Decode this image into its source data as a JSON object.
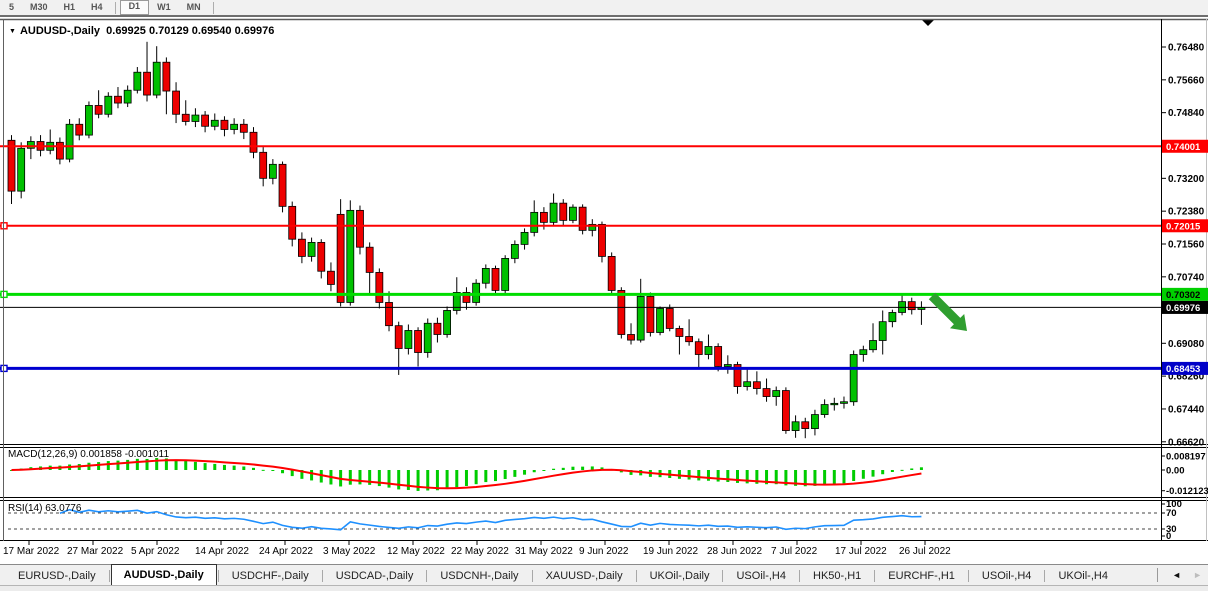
{
  "toolbar": {
    "buttons": [
      "5",
      "M30",
      "H1",
      "H4",
      "D1",
      "W1",
      "MN"
    ],
    "active": "D1",
    "separators_after": [
      "H4",
      "MN"
    ]
  },
  "window": {
    "symbol_label": "AUDUSD-,Daily",
    "ohlc_text": "0.69925 0.70129 0.69540 0.69976"
  },
  "chart_data": {
    "type": "candlestick",
    "symbol": "AUDUSD",
    "timeframe": "Daily",
    "current_bar": {
      "open": 0.69925,
      "high": 0.70129,
      "low": 0.6954,
      "close": 0.69976
    },
    "y_axis_ticks": [
      "0.76480",
      "0.75660",
      "0.74840",
      "0.73200",
      "0.72380",
      "0.71560",
      "0.70740",
      "0.69080",
      "0.68260",
      "0.67440",
      "0.66620"
    ],
    "y_range": {
      "max": 0.7648,
      "min": 0.6662
    },
    "x_labels": [
      "17 Mar 2022",
      "27 Mar 2022",
      "5 Apr 2022",
      "14 Apr 2022",
      "24 Apr 2022",
      "3 May 2022",
      "12 May 2022",
      "22 May 2022",
      "31 May 2022",
      "9 Jun 2022",
      "19 Jun 2022",
      "28 Jun 2022",
      "7 Jul 2022",
      "17 Jul 2022",
      "26 Jul 2022"
    ],
    "hlines": [
      {
        "price": 0.74001,
        "label": "0.74001",
        "color": "#ff0000",
        "width": 2,
        "badge_bg": "#ff0000",
        "badge_fg": "#ffffff",
        "handle": false
      },
      {
        "price": 0.72015,
        "label": "0.72015",
        "color": "#ff0000",
        "width": 2,
        "badge_bg": "#ff0000",
        "badge_fg": "#ffffff",
        "handle": true
      },
      {
        "price": 0.70302,
        "label": "0.70302",
        "color": "#00dd00",
        "width": 3,
        "badge_bg": "#00d000",
        "badge_fg": "#000000",
        "handle": true
      },
      {
        "price": 0.69976,
        "label": "0.69976",
        "color": "#000000",
        "width": 1,
        "badge_bg": "#000000",
        "badge_fg": "#ffffff",
        "handle": false
      },
      {
        "price": 0.68453,
        "label": "0.68453",
        "color": "#0000d0",
        "width": 3,
        "badge_bg": "#0000c8",
        "badge_fg": "#ffffff",
        "handle": true
      }
    ],
    "colors": {
      "bull": "#00c000",
      "bear": "#ee0000",
      "wick": "#000000",
      "arrow": "#2f9e2f"
    },
    "candles": [
      [
        0.7415,
        0.7428,
        0.7256,
        0.7288
      ],
      [
        0.7288,
        0.741,
        0.727,
        0.7395
      ],
      [
        0.7395,
        0.7425,
        0.7368,
        0.7412
      ],
      [
        0.7412,
        0.7428,
        0.7375,
        0.739
      ],
      [
        0.739,
        0.7442,
        0.738,
        0.741
      ],
      [
        0.741,
        0.7422,
        0.7355,
        0.7368
      ],
      [
        0.7368,
        0.7468,
        0.736,
        0.7455
      ],
      [
        0.7455,
        0.747,
        0.7415,
        0.7428
      ],
      [
        0.7428,
        0.7512,
        0.742,
        0.7502
      ],
      [
        0.7502,
        0.754,
        0.747,
        0.748
      ],
      [
        0.748,
        0.7535,
        0.7472,
        0.7525
      ],
      [
        0.7525,
        0.7548,
        0.7495,
        0.7508
      ],
      [
        0.7508,
        0.7552,
        0.7498,
        0.754
      ],
      [
        0.754,
        0.7598,
        0.7532,
        0.7585
      ],
      [
        0.7585,
        0.7661,
        0.7512,
        0.7528
      ],
      [
        0.7528,
        0.765,
        0.752,
        0.761
      ],
      [
        0.761,
        0.7622,
        0.748,
        0.7538
      ],
      [
        0.7538,
        0.756,
        0.7458,
        0.748
      ],
      [
        0.748,
        0.7515,
        0.7452,
        0.7462
      ],
      [
        0.7462,
        0.7495,
        0.7448,
        0.7478
      ],
      [
        0.7478,
        0.7488,
        0.7435,
        0.745
      ],
      [
        0.745,
        0.7482,
        0.744,
        0.7465
      ],
      [
        0.7465,
        0.7475,
        0.7425,
        0.7442
      ],
      [
        0.7442,
        0.747,
        0.743,
        0.7455
      ],
      [
        0.7455,
        0.7468,
        0.7418,
        0.7435
      ],
      [
        0.7435,
        0.7448,
        0.737,
        0.7385
      ],
      [
        0.7385,
        0.7398,
        0.73,
        0.732
      ],
      [
        0.732,
        0.7368,
        0.7305,
        0.7355
      ],
      [
        0.7355,
        0.7362,
        0.7235,
        0.725
      ],
      [
        0.725,
        0.7262,
        0.715,
        0.7168
      ],
      [
        0.7168,
        0.7185,
        0.7108,
        0.7125
      ],
      [
        0.7125,
        0.7172,
        0.7112,
        0.716
      ],
      [
        0.716,
        0.7168,
        0.707,
        0.7088
      ],
      [
        0.7088,
        0.711,
        0.7038,
        0.7055
      ],
      [
        0.723,
        0.7268,
        0.7,
        0.701
      ],
      [
        0.701,
        0.7265,
        0.7002,
        0.724
      ],
      [
        0.724,
        0.7252,
        0.713,
        0.7148
      ],
      [
        0.7148,
        0.716,
        0.703,
        0.7085
      ],
      [
        0.7085,
        0.7095,
        0.6995,
        0.701
      ],
      [
        0.701,
        0.7038,
        0.6938,
        0.6952
      ],
      [
        0.6952,
        0.6962,
        0.6829,
        0.6895
      ],
      [
        0.6895,
        0.6955,
        0.688,
        0.694
      ],
      [
        0.694,
        0.6948,
        0.685,
        0.6885
      ],
      [
        0.6885,
        0.697,
        0.6872,
        0.6958
      ],
      [
        0.6958,
        0.6972,
        0.691,
        0.693
      ],
      [
        0.693,
        0.7,
        0.6922,
        0.699
      ],
      [
        0.699,
        0.7073,
        0.698,
        0.7035
      ],
      [
        0.7035,
        0.7048,
        0.6992,
        0.701
      ],
      [
        0.701,
        0.7068,
        0.7002,
        0.7058
      ],
      [
        0.7058,
        0.7105,
        0.7045,
        0.7095
      ],
      [
        0.7095,
        0.7102,
        0.7028,
        0.704
      ],
      [
        0.704,
        0.7128,
        0.7032,
        0.712
      ],
      [
        0.712,
        0.7165,
        0.7108,
        0.7155
      ],
      [
        0.7155,
        0.7195,
        0.7142,
        0.7185
      ],
      [
        0.7185,
        0.7265,
        0.7175,
        0.7235
      ],
      [
        0.7235,
        0.7248,
        0.7192,
        0.721
      ],
      [
        0.721,
        0.7282,
        0.7202,
        0.7258
      ],
      [
        0.7258,
        0.7268,
        0.72,
        0.7215
      ],
      [
        0.7215,
        0.7255,
        0.7208,
        0.7248
      ],
      [
        0.7248,
        0.7255,
        0.718,
        0.719
      ],
      [
        0.719,
        0.7218,
        0.7175,
        0.7205
      ],
      [
        0.7205,
        0.7212,
        0.711,
        0.7125
      ],
      [
        0.7125,
        0.7135,
        0.7028,
        0.704
      ],
      [
        0.704,
        0.7048,
        0.692,
        0.693
      ],
      [
        0.693,
        0.6958,
        0.6905,
        0.6916
      ],
      [
        0.6916,
        0.7069,
        0.691,
        0.7025
      ],
      [
        0.7025,
        0.7035,
        0.6925,
        0.6935
      ],
      [
        0.6935,
        0.7,
        0.6928,
        0.6995
      ],
      [
        0.6995,
        0.7005,
        0.6938,
        0.6945
      ],
      [
        0.6945,
        0.6952,
        0.688,
        0.6925
      ],
      [
        0.6925,
        0.6968,
        0.6902,
        0.6912
      ],
      [
        0.6912,
        0.692,
        0.6848,
        0.688
      ],
      [
        0.688,
        0.693,
        0.6868,
        0.69
      ],
      [
        0.69,
        0.6908,
        0.6838,
        0.685
      ],
      [
        0.685,
        0.6878,
        0.6832,
        0.6855
      ],
      [
        0.6855,
        0.6862,
        0.6782,
        0.68
      ],
      [
        0.68,
        0.6848,
        0.679,
        0.6812
      ],
      [
        0.6812,
        0.6838,
        0.678,
        0.6795
      ],
      [
        0.6795,
        0.682,
        0.6762,
        0.6775
      ],
      [
        0.6775,
        0.68,
        0.6752,
        0.679
      ],
      [
        0.679,
        0.6798,
        0.6682,
        0.669
      ],
      [
        0.669,
        0.6728,
        0.6672,
        0.6712
      ],
      [
        0.6712,
        0.6722,
        0.6671,
        0.6695
      ],
      [
        0.6695,
        0.6742,
        0.6678,
        0.673
      ],
      [
        0.673,
        0.6768,
        0.6722,
        0.6755
      ],
      [
        0.6755,
        0.6772,
        0.674,
        0.6758
      ],
      [
        0.6758,
        0.6775,
        0.6745,
        0.6762
      ],
      [
        0.6762,
        0.689,
        0.6752,
        0.688
      ],
      [
        0.688,
        0.6902,
        0.6862,
        0.6892
      ],
      [
        0.6892,
        0.6958,
        0.6885,
        0.6915
      ],
      [
        0.6915,
        0.699,
        0.688,
        0.6962
      ],
      [
        0.6962,
        0.6992,
        0.6948,
        0.6985
      ],
      [
        0.6985,
        0.7032,
        0.6978,
        0.7012
      ],
      [
        0.7012,
        0.7022,
        0.698,
        0.6992
      ],
      [
        0.69925,
        0.70129,
        0.6954,
        0.69976
      ]
    ],
    "indicators": {
      "macd": {
        "label": "MACD(12,26,9)",
        "values_text": "0.001858 -0.001011",
        "axis": [
          "0.008197",
          "0.00",
          "-0.012123"
        ],
        "hist_color": "#00cc00",
        "signal_color": "#ff0000"
      },
      "rsi": {
        "label": "RSI(14)",
        "value_text": "63.0776",
        "axis": [
          "100",
          "70",
          "30",
          "0"
        ],
        "levels": [
          70,
          30
        ],
        "color": "#1e90ff"
      }
    }
  },
  "tabs": {
    "items": [
      "EURUSD-,Daily",
      "AUDUSD-,Daily",
      "USDCHF-,Daily",
      "USDCAD-,Daily",
      "USDCNH-,Daily",
      "XAUUSD-,Daily",
      "UKOil-,Daily",
      "USOil-,H4",
      "HK50-,H1",
      "EURCHF-,H1",
      "USOil-,H4",
      "UKOil-,H4"
    ],
    "active_index": 1,
    "scroll_left": "◄",
    "scroll_right": "►"
  }
}
